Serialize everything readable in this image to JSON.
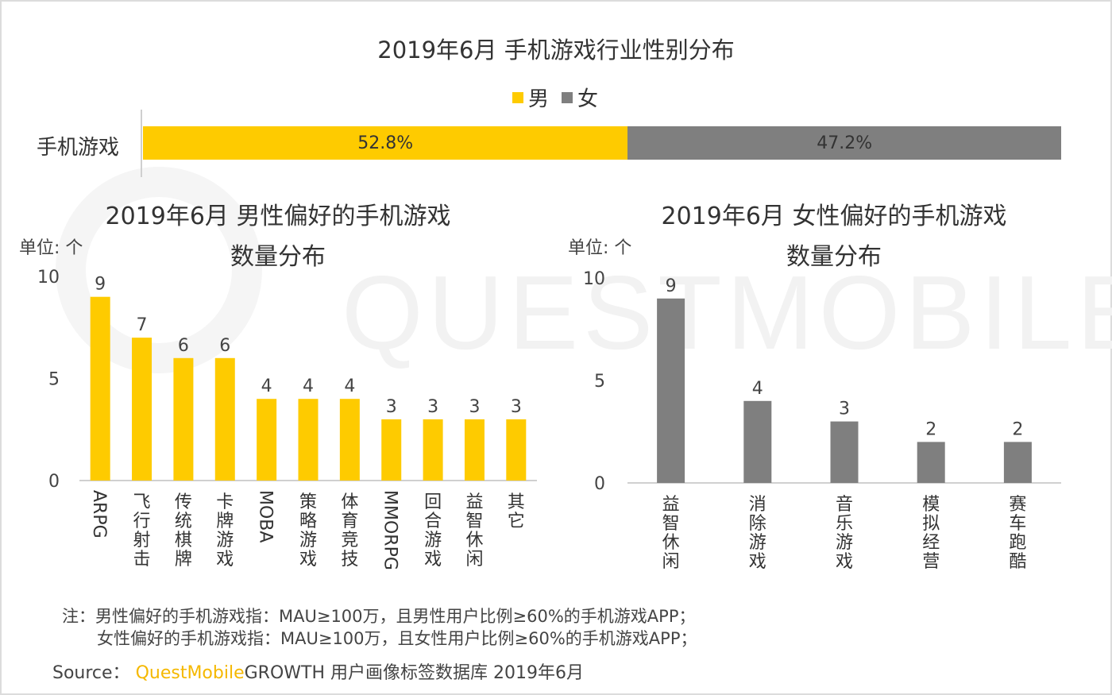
{
  "main_title": "2019年6月 手机游戏行业性别分布",
  "legend": {
    "male": "男",
    "female": "女"
  },
  "colors": {
    "male": "#fecb00",
    "female": "#7f7f7f",
    "axis": "#cfcfcf",
    "text": "#333333"
  },
  "stacked": {
    "category": "手机游戏",
    "male_pct_label": "52.8%",
    "female_pct_label": "47.2%",
    "male_pct": 52.8,
    "female_pct": 47.2
  },
  "left_title_1": "2019年6月 男性偏好的手机游戏",
  "left_title_2": "数量分布",
  "right_title_1": "2019年6月 女性偏好的手机游戏",
  "right_title_2": "数量分布",
  "unit": "单位: 个",
  "chart_data": [
    {
      "type": "bar",
      "title": "2019年6月 手机游戏行业性别分布",
      "categories": [
        "手机游戏"
      ],
      "series": [
        {
          "name": "男",
          "values": [
            52.8
          ]
        },
        {
          "name": "女",
          "values": [
            47.2
          ]
        }
      ],
      "stacked": true,
      "orientation": "horizontal"
    },
    {
      "type": "bar",
      "title": "2019年6月 男性偏好的手机游戏 数量分布",
      "ylabel": "单位: 个",
      "categories": [
        "ARPG",
        "飞行射击",
        "传统棋牌",
        "卡牌游戏",
        "MOBA",
        "策略游戏",
        "体育竞技",
        "MMORPG",
        "回合游戏",
        "益智休闲",
        "其它"
      ],
      "values": [
        9,
        7,
        6,
        6,
        4,
        4,
        4,
        3,
        3,
        3,
        3
      ],
      "yticks": [
        0,
        5,
        10
      ],
      "ylim": [
        0,
        10
      ]
    },
    {
      "type": "bar",
      "title": "2019年6月 女性偏好的手机游戏 数量分布",
      "ylabel": "单位: 个",
      "categories": [
        "益智休闲",
        "消除游戏",
        "音乐游戏",
        "模拟经营",
        "赛车跑酷"
      ],
      "values": [
        9,
        4,
        3,
        2,
        2
      ],
      "yticks": [
        0,
        5,
        10
      ],
      "ylim": [
        0,
        10
      ]
    }
  ],
  "footnote_line1": "注：男性偏好的手机游戏指：MAU≥100万，且男性用户比例≥60%的手机游戏APP；",
  "footnote_line2": "女性偏好的手机游戏指：MAU≥100万，且女性用户比例≥60%的手机游戏APP；",
  "source_prefix": "Source：",
  "source_brand": "QuestMobile",
  "source_rest": "GROWTH 用户画像标签数据库 2019年6月",
  "watermark": "QUESTMOBILE"
}
